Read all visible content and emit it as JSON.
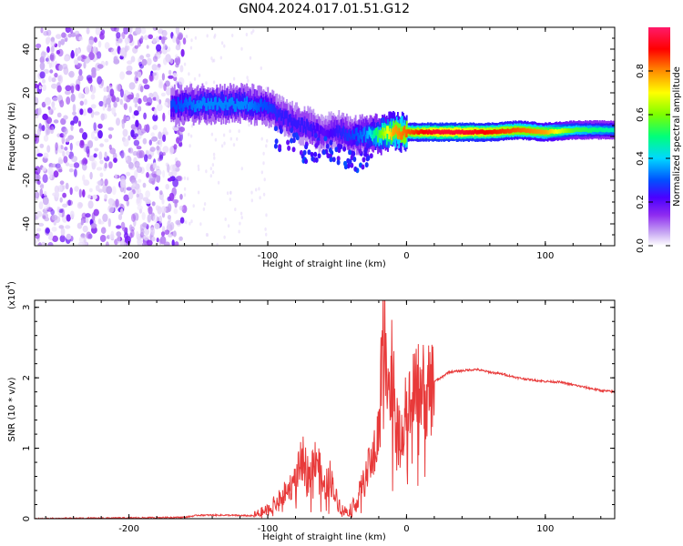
{
  "title": "GN04.2024.017.01.51.G12",
  "colors": {
    "snr_line": "#e83a3a",
    "colormap": [
      "#ffffff",
      "#c7a7f3",
      "#8f2cf0",
      "#4b00ff",
      "#0050ff",
      "#00d8ff",
      "#00ff7a",
      "#7dff00",
      "#ffff00",
      "#ff8c00",
      "#ff0000",
      "#ff1a6a"
    ]
  },
  "chart_data": [
    {
      "type": "heatmap",
      "xlabel": "Height of straight line (km)",
      "ylabel": "Frequency (Hz)",
      "xlim": [
        -268,
        150
      ],
      "ylim": [
        -50,
        50
      ],
      "x_ticks": [
        -200,
        -100,
        0,
        100
      ],
      "x_tick_labels": [
        "-200",
        "-100",
        "0",
        "100"
      ],
      "y_ticks": [
        -40,
        -20,
        0,
        20,
        40
      ],
      "y_tick_labels": [
        "-40",
        "-20",
        "0",
        "20",
        "40"
      ],
      "colorbar": {
        "label": "Normalized spectral amplitude",
        "range": [
          0,
          1
        ],
        "ticks": [
          0.0,
          0.2,
          0.4,
          0.6,
          0.8
        ],
        "tick_labels": [
          "0.0",
          "0.2",
          "0.4",
          "0.6",
          "0.8"
        ]
      },
      "ridge": {
        "x": [
          -170,
          -150,
          -130,
          -115,
          -100,
          -90,
          -80,
          -70,
          -60,
          -50,
          -40,
          -30,
          -20,
          -10,
          0,
          20,
          40,
          60,
          80,
          100,
          120,
          150
        ],
        "frequency": [
          14,
          15,
          15,
          15,
          13,
          9,
          6,
          4,
          1,
          3,
          0,
          1,
          1,
          2,
          2,
          2,
          2,
          2,
          3,
          2,
          3,
          3
        ],
        "amplitude": [
          0.35,
          0.4,
          0.4,
          0.4,
          0.35,
          0.3,
          0.3,
          0.3,
          0.25,
          0.3,
          0.35,
          0.4,
          0.6,
          0.8,
          0.85,
          0.95,
          0.95,
          0.9,
          0.85,
          0.8,
          0.6,
          0.5
        ]
      },
      "noise_region_x": [
        -268,
        -160
      ]
    },
    {
      "type": "line",
      "xlabel": "Height of straight line (km)",
      "ylabel": "SNR (10 * v/v)",
      "y_multiplier": "(x10",
      "y_multiplier_exp": "4",
      "y_multiplier_close": ")",
      "xlim": [
        -268,
        150
      ],
      "ylim": [
        0,
        3.1
      ],
      "x_ticks": [
        -200,
        -100,
        0,
        100
      ],
      "x_tick_labels": [
        "-200",
        "-100",
        "0",
        "100"
      ],
      "y_ticks": [
        0,
        1,
        2,
        3
      ],
      "y_tick_labels": [
        "0",
        "1",
        "2",
        "3"
      ],
      "series": [
        {
          "x": [
            -268,
            -200,
            -160,
            -150,
            -130,
            -110,
            -100,
            -90,
            -80,
            -75,
            -70,
            -65,
            -60,
            -55,
            -50,
            -45,
            -40,
            -35,
            -30,
            -25,
            -20,
            -18,
            -15,
            -12,
            -10,
            -8,
            -5,
            -2,
            0,
            5,
            10,
            15,
            20,
            25,
            30,
            40,
            50,
            60,
            70,
            80,
            90,
            100,
            110,
            120,
            130,
            140,
            150
          ],
          "values": [
            0.0,
            0.01,
            0.02,
            0.05,
            0.05,
            0.04,
            0.12,
            0.3,
            0.55,
            0.85,
            0.6,
            0.95,
            0.4,
            0.6,
            0.25,
            0.1,
            0.15,
            0.3,
            0.55,
            0.85,
            1.2,
            2.2,
            2.9,
            1.6,
            2.4,
            1.5,
            1.1,
            1.4,
            1.5,
            1.7,
            1.9,
            1.75,
            1.95,
            2.0,
            2.08,
            2.1,
            2.12,
            2.08,
            2.05,
            2.0,
            1.97,
            1.95,
            1.94,
            1.9,
            1.86,
            1.82,
            1.8
          ]
        }
      ]
    }
  ]
}
